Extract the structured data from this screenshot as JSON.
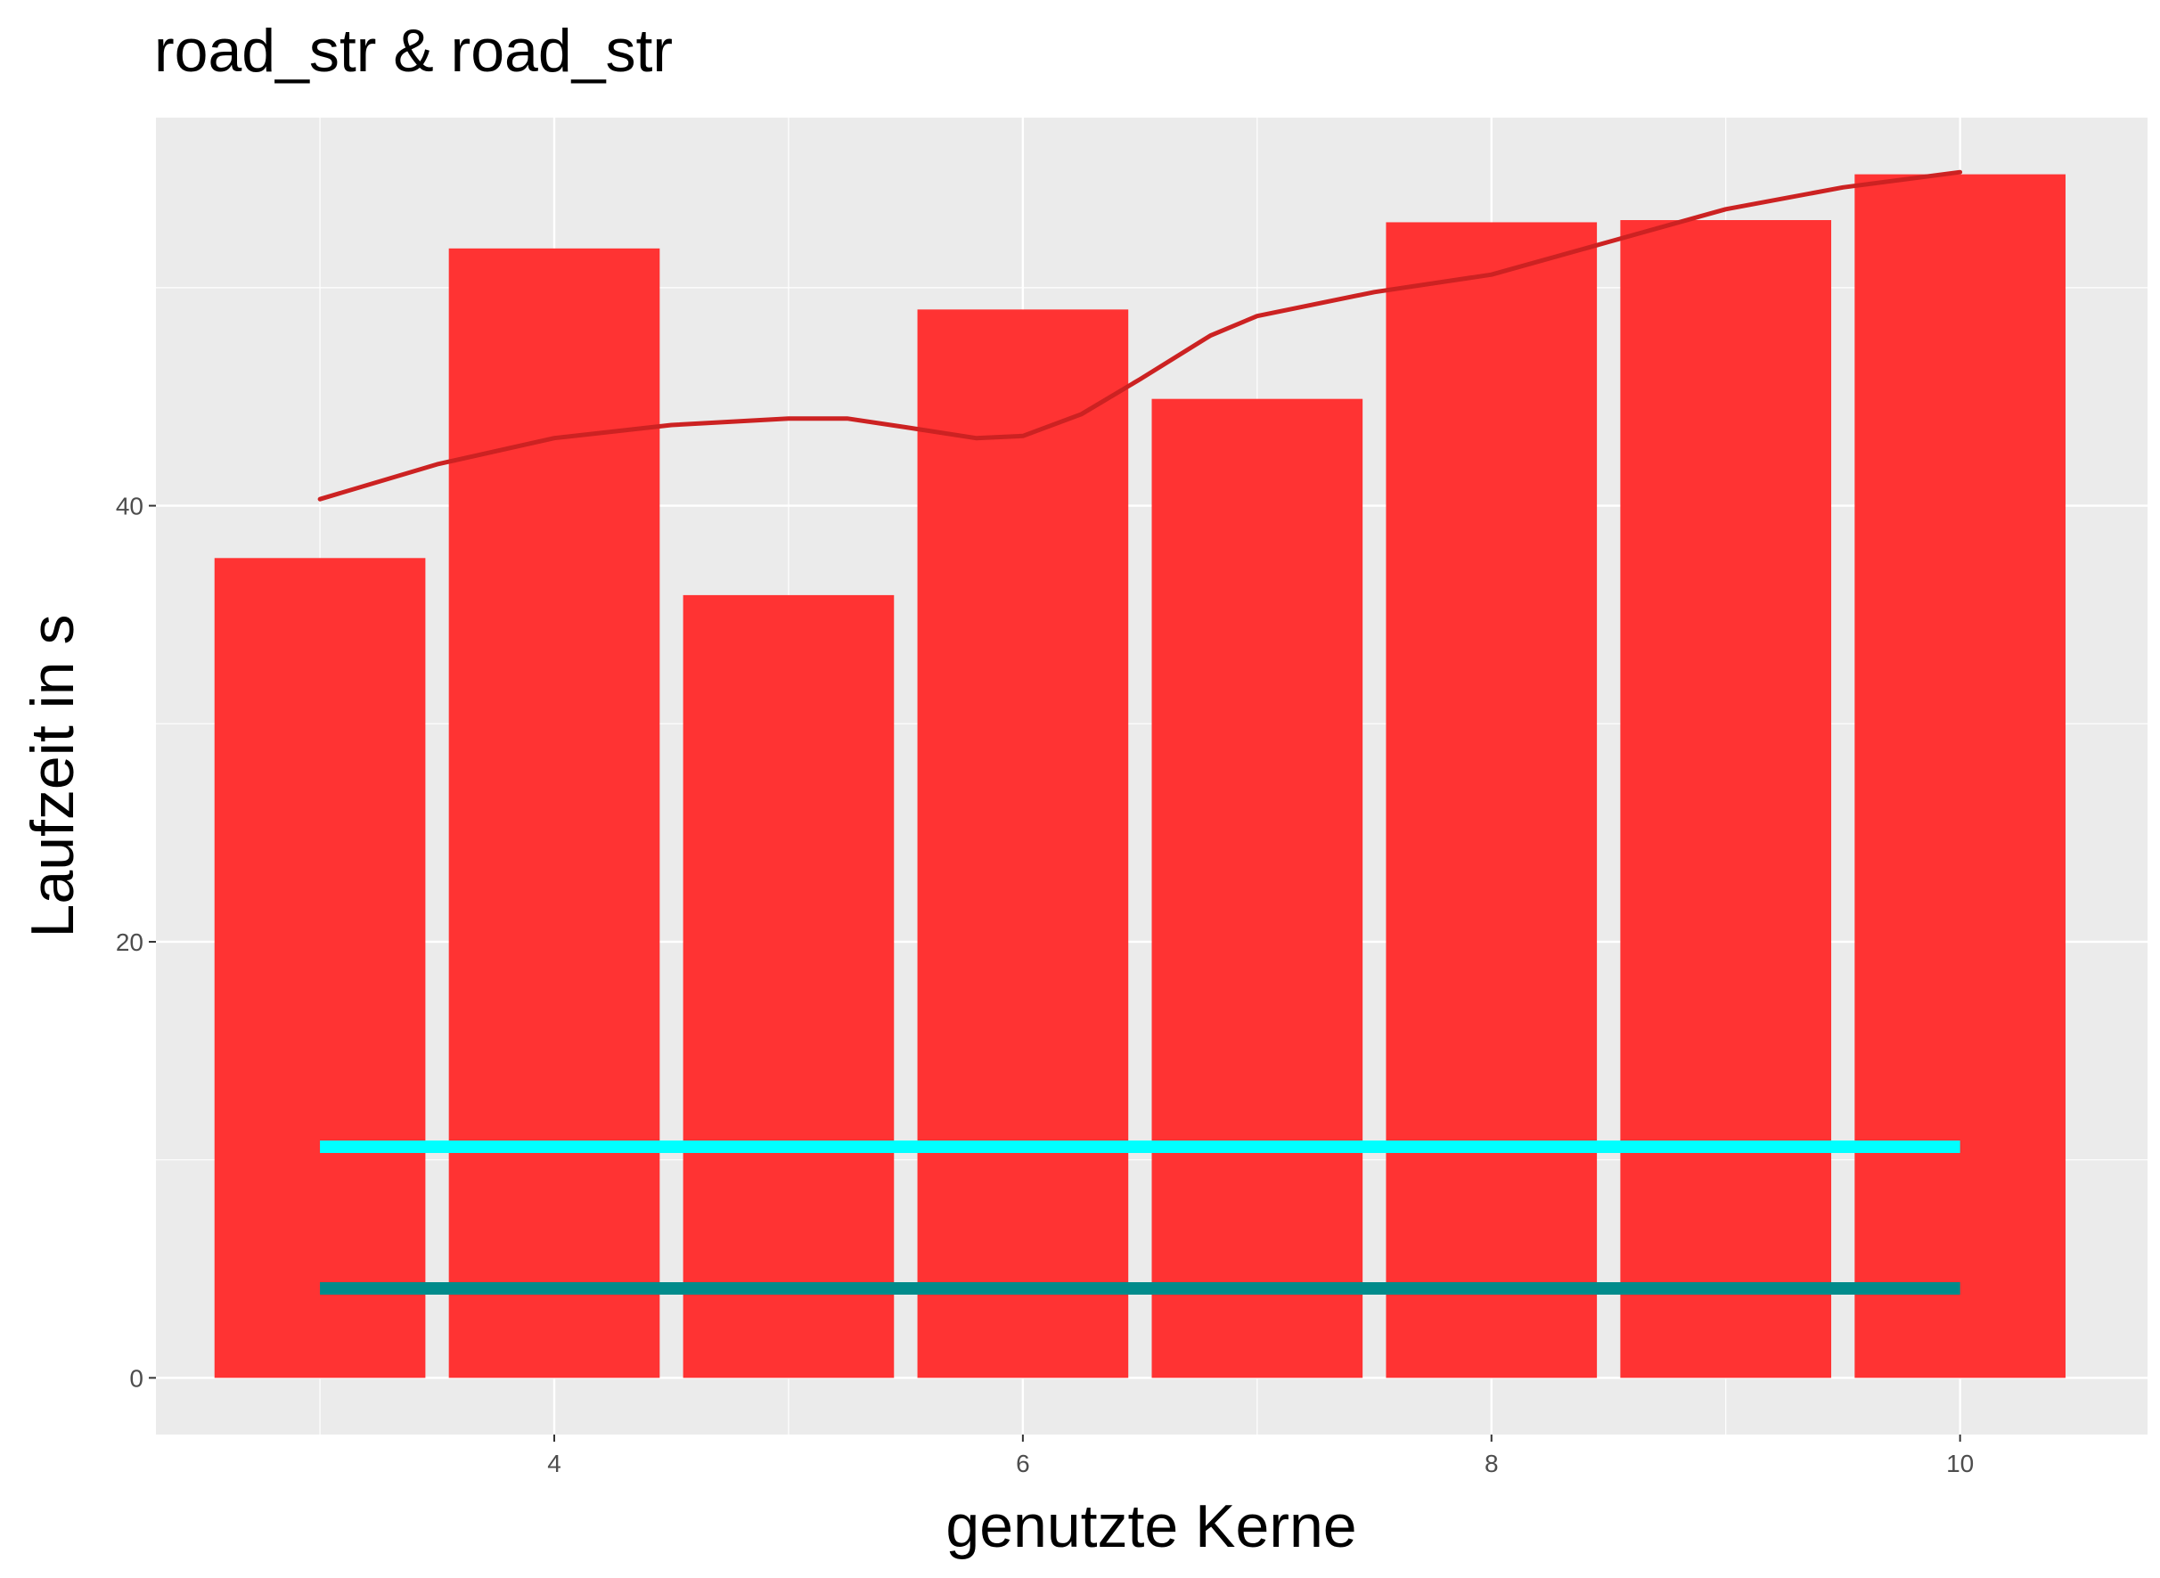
{
  "chart_data": {
    "type": "bar",
    "title": "road_str & road_str",
    "xlabel": "genutzte Kerne",
    "ylabel": "Laufzeit in s",
    "x": [
      3,
      4,
      5,
      6,
      7,
      8,
      9,
      10
    ],
    "values": [
      37.6,
      51.8,
      35.9,
      49.0,
      44.9,
      53.0,
      53.1,
      55.2
    ],
    "xlim": [
      2.3,
      10.8
    ],
    "ylim": [
      -2.6,
      57.8
    ],
    "xticks": [
      4,
      6,
      8,
      10
    ],
    "yticks": [
      0,
      20,
      40
    ],
    "grid": true,
    "legend": "none",
    "smooth_line": {
      "color": "#cc2222",
      "points": [
        [
          3,
          40.3
        ],
        [
          3.5,
          41.9
        ],
        [
          4,
          43.1
        ],
        [
          4.5,
          43.7
        ],
        [
          5,
          44.0
        ],
        [
          5.25,
          44.0
        ],
        [
          5.5,
          43.6
        ],
        [
          5.8,
          43.1
        ],
        [
          6,
          43.2
        ],
        [
          6.25,
          44.2
        ],
        [
          6.5,
          45.8
        ],
        [
          6.8,
          47.8
        ],
        [
          7,
          48.7
        ],
        [
          7.5,
          49.8
        ],
        [
          8,
          50.6
        ],
        [
          8.5,
          52.1
        ],
        [
          9,
          53.6
        ],
        [
          9.5,
          54.6
        ],
        [
          10,
          55.3
        ]
      ]
    },
    "hlines": [
      {
        "y": 10.6,
        "x_from": 3,
        "x_to": 10,
        "color": "#00ffff"
      },
      {
        "y": 4.1,
        "x_from": 3,
        "x_to": 10,
        "color": "#008b8b"
      }
    ],
    "colors": {
      "bar": "#ff3333",
      "panel": "#ebebeb",
      "grid": "#ffffff"
    }
  }
}
